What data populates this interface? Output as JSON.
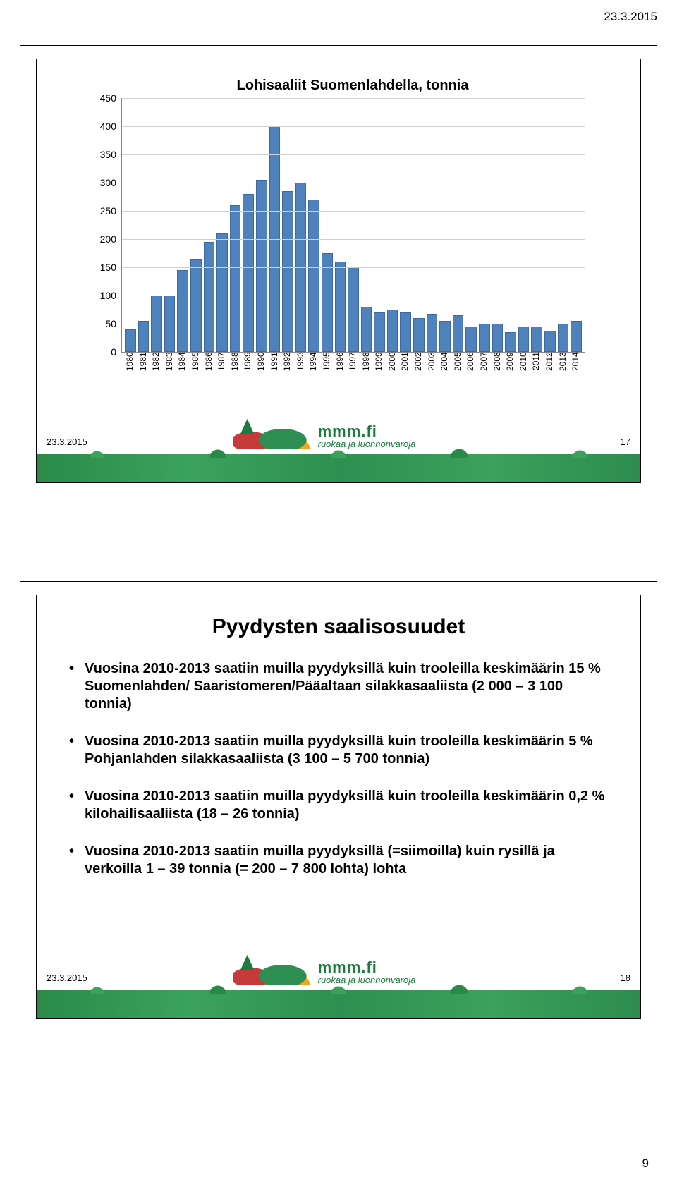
{
  "page": {
    "header_date": "23.3.2015",
    "page_number": "9"
  },
  "slide1": {
    "footer_date": "23.3.2015",
    "slide_number": "17",
    "logo_brand": "mmm.fi",
    "logo_tag": "ruokaa ja luonnonvaroja",
    "chart": {
      "type": "bar",
      "title": "Lohisaaliit Suomenlahdella, tonnia",
      "title_fontsize": 20,
      "ylim": [
        0,
        450
      ],
      "ytick_step": 50,
      "yticks": [
        0,
        50,
        100,
        150,
        200,
        250,
        300,
        350,
        400,
        450
      ],
      "bar_color": "#4f81bd",
      "bar_border_color": "#3a6aa1",
      "axis_color": "#888888",
      "grid_color": "#d0d0d0",
      "background_color": "#ffffff",
      "label_fontsize": 14,
      "years": [
        "1980",
        "1981",
        "1982",
        "1983",
        "1984",
        "1985",
        "1986",
        "1987",
        "1988",
        "1989",
        "1990",
        "1991",
        "1992",
        "1993",
        "1994",
        "1995",
        "1996",
        "1997",
        "1998",
        "1999",
        "2000",
        "2001",
        "2002",
        "2003",
        "2004",
        "2005",
        "2006",
        "2007",
        "2008",
        "2009",
        "2010",
        "2011",
        "2012",
        "2013",
        "2014"
      ],
      "values": [
        40,
        55,
        100,
        100,
        145,
        165,
        195,
        210,
        260,
        280,
        305,
        400,
        285,
        300,
        270,
        175,
        160,
        150,
        80,
        70,
        75,
        70,
        60,
        68,
        55,
        65,
        45,
        50,
        50,
        35,
        45,
        45,
        38,
        50,
        55
      ]
    }
  },
  "slide2": {
    "footer_date": "23.3.2015",
    "slide_number": "18",
    "logo_brand": "mmm.fi",
    "logo_tag": "ruokaa ja luonnonvaroja",
    "title": "Pyydysten saalisosuudet",
    "bullets": [
      "Vuosina 2010-2013 saatiin muilla pyydyksillä kuin trooleilla keskimäärin 15 % Suomenlahden/ Saaristomeren/Pääaltaan silakkasaaliista (2 000 – 3 100 tonnia)",
      "Vuosina 2010-2013 saatiin muilla pyydyksillä kuin trooleilla keskimäärin 5 % Pohjanlahden silakkasaaliista (3 100 – 5 700 tonnia)",
      "Vuosina 2010-2013 saatiin muilla pyydyksillä kuin trooleilla keskimäärin 0,2 % kilohailisaaliista (18 – 26 tonnia)",
      "Vuosina 2010-2013 saatiin muilla pyydyksillä (=siimoilla) kuin rysillä ja verkoilla 1 – 39 tonnia (= 200 – 7 800 lohta) lohta"
    ]
  }
}
